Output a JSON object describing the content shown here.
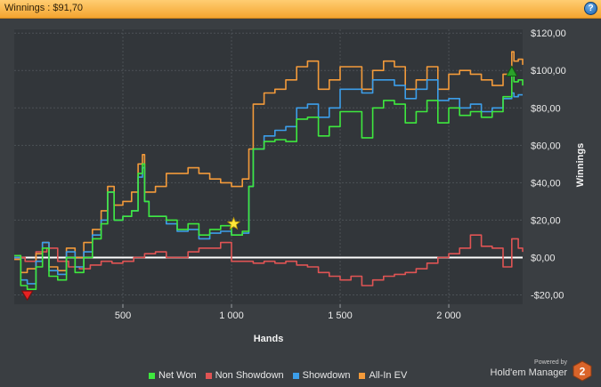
{
  "window": {
    "title": "Winnings : $91,70"
  },
  "colors": {
    "net_won": "#3ee83e",
    "non_showdown": "#e05454",
    "showdown": "#3c9eea",
    "allin_ev": "#f39a3a",
    "zero_line": "#ffffff"
  },
  "brand": {
    "powered_by": "Powered by",
    "name": "Hold'em Manager",
    "version": "2"
  },
  "chart_data": {
    "type": "line",
    "xlabel": "Hands",
    "ylabel": "Winnings",
    "xlim": [
      0,
      2340
    ],
    "ylim": [
      -25,
      122
    ],
    "x_ticks": [
      500,
      1000,
      1500,
      2000
    ],
    "x_tick_labels": [
      "500",
      "1 000",
      "1 500",
      "2 000"
    ],
    "y_ticks": [
      -20,
      0,
      20,
      40,
      60,
      80,
      100,
      120
    ],
    "y_tick_labels": [
      "-$20,00",
      "$0,00",
      "$20,00",
      "$40,00",
      "$60,00",
      "$80,00",
      "$100,00",
      "$120,00"
    ],
    "grid": true,
    "legend": "bottom",
    "series": [
      {
        "name": "Net Won",
        "x": [
          0,
          30,
          60,
          100,
          130,
          160,
          200,
          240,
          280,
          320,
          360,
          400,
          430,
          460,
          500,
          540,
          570,
          590,
          600,
          620,
          650,
          700,
          750,
          800,
          850,
          900,
          950,
          1000,
          1050,
          1080,
          1100,
          1150,
          1200,
          1250,
          1300,
          1350,
          1400,
          1450,
          1500,
          1550,
          1600,
          1650,
          1700,
          1750,
          1800,
          1850,
          1900,
          1950,
          2000,
          2050,
          2100,
          2150,
          2200,
          2250,
          2290,
          2300,
          2320,
          2340
        ],
        "y": [
          1,
          -15,
          -17,
          -5,
          5,
          -10,
          -12,
          0,
          -8,
          0,
          10,
          18,
          35,
          20,
          22,
          25,
          45,
          50,
          30,
          22,
          22,
          20,
          15,
          18,
          12,
          15,
          17,
          12,
          14,
          38,
          58,
          62,
          63,
          62,
          74,
          75,
          65,
          70,
          78,
          78,
          64,
          80,
          84,
          82,
          72,
          78,
          84,
          72,
          80,
          76,
          78,
          75,
          78,
          86,
          98,
          94,
          95,
          92
        ]
      },
      {
        "name": "Non Showdown",
        "x": [
          0,
          50,
          100,
          150,
          200,
          250,
          300,
          350,
          400,
          450,
          500,
          550,
          600,
          650,
          700,
          750,
          800,
          850,
          900,
          950,
          1000,
          1050,
          1100,
          1150,
          1200,
          1250,
          1300,
          1350,
          1400,
          1450,
          1500,
          1550,
          1600,
          1650,
          1700,
          1750,
          1800,
          1850,
          1900,
          1950,
          2000,
          2050,
          2100,
          2150,
          2200,
          2250,
          2290,
          2320,
          2340
        ],
        "y": [
          0,
          -2,
          3,
          5,
          -2,
          -5,
          -6,
          -4,
          -2,
          -3,
          -2,
          0,
          2,
          3,
          0,
          0,
          3,
          5,
          5,
          8,
          -2,
          -2,
          -3,
          -2,
          -3,
          -2,
          -4,
          -5,
          -8,
          -10,
          -12,
          -10,
          -15,
          -12,
          -10,
          -9,
          -8,
          -6,
          -3,
          0,
          2,
          5,
          12,
          6,
          5,
          -5,
          10,
          5,
          3
        ]
      },
      {
        "name": "Showdown",
        "x": [
          0,
          30,
          60,
          100,
          130,
          160,
          200,
          240,
          280,
          320,
          360,
          400,
          430,
          460,
          500,
          540,
          570,
          590,
          600,
          620,
          650,
          700,
          750,
          800,
          850,
          900,
          950,
          1000,
          1050,
          1080,
          1100,
          1150,
          1200,
          1250,
          1300,
          1350,
          1400,
          1450,
          1500,
          1550,
          1600,
          1650,
          1700,
          1750,
          1800,
          1850,
          1900,
          1950,
          2000,
          2050,
          2100,
          2150,
          2200,
          2250,
          2290,
          2300,
          2320,
          2340
        ],
        "y": [
          0,
          -12,
          -14,
          -2,
          8,
          -7,
          -9,
          3,
          -5,
          3,
          12,
          20,
          35,
          20,
          22,
          25,
          43,
          48,
          30,
          22,
          22,
          18,
          14,
          15,
          10,
          13,
          14,
          12,
          13,
          38,
          58,
          65,
          68,
          70,
          80,
          82,
          75,
          80,
          90,
          90,
          88,
          95,
          95,
          92,
          85,
          90,
          95,
          84,
          85,
          80,
          82,
          78,
          80,
          85,
          88,
          86,
          87,
          87
        ]
      },
      {
        "name": "All-In EV",
        "x": [
          0,
          30,
          60,
          100,
          130,
          160,
          200,
          240,
          280,
          320,
          360,
          400,
          430,
          460,
          500,
          540,
          570,
          590,
          600,
          620,
          650,
          700,
          750,
          800,
          850,
          900,
          950,
          1000,
          1050,
          1080,
          1100,
          1150,
          1200,
          1250,
          1300,
          1350,
          1400,
          1450,
          1500,
          1550,
          1600,
          1650,
          1700,
          1750,
          1800,
          1850,
          1900,
          1950,
          2000,
          2050,
          2100,
          2150,
          2200,
          2250,
          2290,
          2300,
          2320,
          2340
        ],
        "y": [
          -1,
          -8,
          -6,
          2,
          8,
          -5,
          -7,
          5,
          0,
          8,
          15,
          25,
          38,
          28,
          30,
          35,
          50,
          55,
          35,
          35,
          38,
          45,
          45,
          48,
          45,
          42,
          40,
          38,
          42,
          58,
          82,
          88,
          90,
          95,
          102,
          105,
          90,
          95,
          102,
          102,
          90,
          100,
          105,
          102,
          90,
          95,
          102,
          90,
          98,
          100,
          98,
          95,
          92,
          98,
          110,
          105,
          106,
          103
        ]
      }
    ]
  }
}
